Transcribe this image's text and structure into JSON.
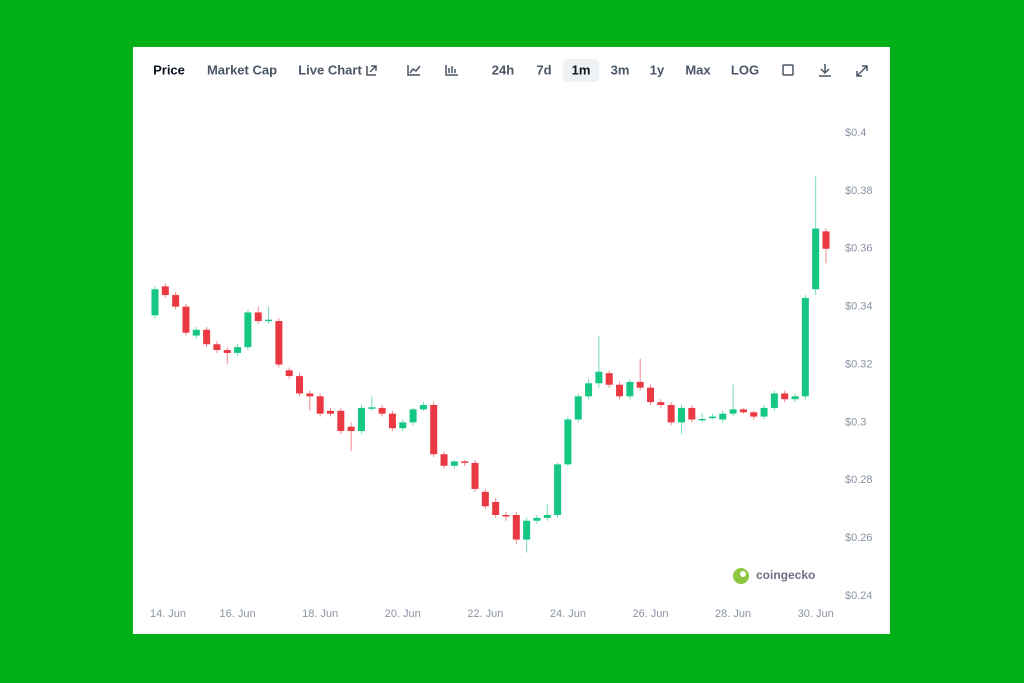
{
  "toolbar": {
    "tabs": [
      "Price",
      "Market Cap",
      "Live Chart"
    ],
    "active_tab": 0,
    "ranges": [
      "24h",
      "7d",
      "1m",
      "3m",
      "1y",
      "Max",
      "LOG"
    ],
    "active_range": 2
  },
  "watermark": "coingecko",
  "chart_data": {
    "type": "candlestick",
    "up_color": "#16c784",
    "down_color": "#ea3943",
    "x": [
      14,
      14.25,
      14.5,
      14.75,
      15,
      15.25,
      15.5,
      15.75,
      16,
      16.25,
      16.5,
      16.75,
      17,
      17.25,
      17.5,
      17.75,
      18,
      18.25,
      18.5,
      18.75,
      19,
      19.25,
      19.5,
      19.75,
      20,
      20.25,
      20.5,
      20.75,
      21,
      21.25,
      21.5,
      21.75,
      22,
      22.25,
      22.5,
      22.75,
      23,
      23.25,
      23.5,
      23.75,
      24,
      24.25,
      24.5,
      24.75,
      25,
      25.25,
      25.5,
      25.75,
      26,
      26.25,
      26.5,
      26.75,
      27,
      27.25,
      27.5,
      27.75,
      28,
      28.25,
      28.5,
      28.75,
      29,
      29.25,
      29.5,
      29.75,
      30,
      30.25
    ],
    "open": [
      0.337,
      0.347,
      0.344,
      0.34,
      0.33,
      0.332,
      0.327,
      0.325,
      0.324,
      0.326,
      0.338,
      0.335,
      0.335,
      0.318,
      0.316,
      0.31,
      0.309,
      0.304,
      0.304,
      0.2985,
      0.297,
      0.305,
      0.305,
      0.303,
      0.298,
      0.3,
      0.3045,
      0.306,
      0.289,
      0.285,
      0.2865,
      0.286,
      0.276,
      0.2725,
      0.268,
      0.268,
      0.2595,
      0.266,
      0.267,
      0.268,
      0.2855,
      0.301,
      0.309,
      0.3135,
      0.317,
      0.313,
      0.309,
      0.314,
      0.312,
      0.307,
      0.306,
      0.3,
      0.305,
      0.301,
      0.3015,
      0.301,
      0.303,
      0.3045,
      0.3035,
      0.302,
      0.305,
      0.31,
      0.308,
      0.309,
      0.346,
      0.366
    ],
    "high": [
      0.347,
      0.348,
      0.345,
      0.341,
      0.333,
      0.333,
      0.328,
      0.326,
      0.327,
      0.339,
      0.34,
      0.34,
      0.336,
      0.319,
      0.317,
      0.311,
      0.31,
      0.305,
      0.305,
      0.3,
      0.306,
      0.309,
      0.306,
      0.304,
      0.301,
      0.305,
      0.307,
      0.307,
      0.29,
      0.287,
      0.287,
      0.287,
      0.277,
      0.274,
      0.269,
      0.269,
      0.267,
      0.268,
      0.272,
      0.286,
      0.302,
      0.31,
      0.315,
      0.33,
      0.318,
      0.314,
      0.315,
      0.322,
      0.313,
      0.308,
      0.307,
      0.306,
      0.306,
      0.303,
      0.303,
      0.304,
      0.313,
      0.305,
      0.304,
      0.306,
      0.311,
      0.311,
      0.31,
      0.344,
      0.385,
      0.367
    ],
    "low": [
      0.336,
      0.343,
      0.339,
      0.33,
      0.329,
      0.326,
      0.324,
      0.32,
      0.323,
      0.325,
      0.334,
      0.334,
      0.319,
      0.315,
      0.309,
      0.304,
      0.302,
      0.302,
      0.296,
      0.29,
      0.296,
      0.304,
      0.302,
      0.297,
      0.297,
      0.299,
      0.304,
      0.288,
      0.284,
      0.284,
      0.285,
      0.276,
      0.27,
      0.267,
      0.266,
      0.258,
      0.255,
      0.265,
      0.266,
      0.267,
      0.285,
      0.3,
      0.308,
      0.312,
      0.312,
      0.308,
      0.308,
      0.311,
      0.306,
      0.305,
      0.299,
      0.296,
      0.3,
      0.3,
      0.301,
      0.3,
      0.302,
      0.303,
      0.301,
      0.301,
      0.304,
      0.307,
      0.307,
      0.308,
      0.344,
      0.355
    ],
    "close": [
      0.346,
      0.344,
      0.34,
      0.331,
      0.332,
      0.327,
      0.325,
      0.324,
      0.326,
      0.338,
      0.335,
      0.3355,
      0.32,
      0.316,
      0.31,
      0.309,
      0.303,
      0.303,
      0.297,
      0.297,
      0.305,
      0.3052,
      0.303,
      0.298,
      0.3,
      0.3045,
      0.306,
      0.289,
      0.285,
      0.2865,
      0.286,
      0.277,
      0.271,
      0.268,
      0.2678,
      0.2595,
      0.266,
      0.267,
      0.268,
      0.2855,
      0.301,
      0.309,
      0.3135,
      0.3175,
      0.313,
      0.309,
      0.314,
      0.312,
      0.307,
      0.306,
      0.3,
      0.305,
      0.301,
      0.3012,
      0.302,
      0.303,
      0.3045,
      0.3035,
      0.302,
      0.305,
      0.31,
      0.308,
      0.309,
      0.343,
      0.367,
      0.36
    ],
    "xlim": [
      14,
      30.25
    ],
    "xticks": [
      {
        "value": 14,
        "label": "14. Jun"
      },
      {
        "value": 16,
        "label": "16. Jun"
      },
      {
        "value": 18,
        "label": "18. Jun"
      },
      {
        "value": 20,
        "label": "20. Jun"
      },
      {
        "value": 22,
        "label": "22. Jun"
      },
      {
        "value": 24,
        "label": "24. Jun"
      },
      {
        "value": 26,
        "label": "26. Jun"
      },
      {
        "value": 28,
        "label": "28. Jun"
      },
      {
        "value": 30,
        "label": "30. Jun"
      }
    ],
    "ylim": [
      0.24,
      0.4
    ],
    "yticks": [
      {
        "value": 0.24,
        "label": "$0.24"
      },
      {
        "value": 0.26,
        "label": "$0.26"
      },
      {
        "value": 0.28,
        "label": "$0.28"
      },
      {
        "value": 0.3,
        "label": "$0.3"
      },
      {
        "value": 0.32,
        "label": "$0.32"
      },
      {
        "value": 0.34,
        "label": "$0.34"
      },
      {
        "value": 0.36,
        "label": "$0.36"
      },
      {
        "value": 0.38,
        "label": "$0.38"
      },
      {
        "value": 0.4,
        "label": "$0.4"
      }
    ]
  }
}
